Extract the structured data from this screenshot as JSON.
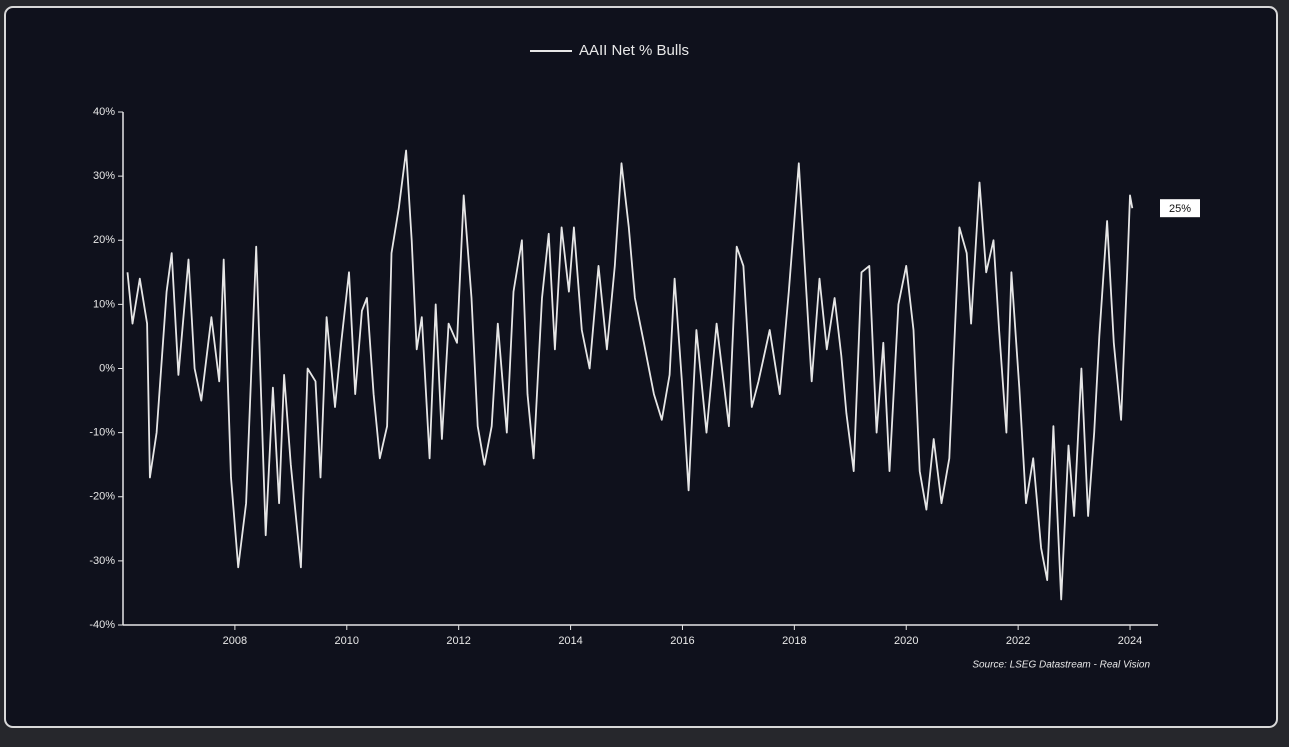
{
  "chart_data": {
    "type": "line",
    "xlim": [
      2006,
      2024.5
    ],
    "ylim": [
      -40,
      40
    ],
    "xticks": [
      2008,
      2010,
      2012,
      2014,
      2016,
      2018,
      2020,
      2022,
      2024
    ],
    "yticks": [
      {
        "value": -40,
        "label": "-40%"
      },
      {
        "value": -30,
        "label": "-30%"
      },
      {
        "value": -20,
        "label": "-20%"
      },
      {
        "value": -10,
        "label": "-10%"
      },
      {
        "value": 0,
        "label": "0%"
      },
      {
        "value": 10,
        "label": "10%"
      },
      {
        "value": 20,
        "label": "20%"
      },
      {
        "value": 30,
        "label": "30%"
      },
      {
        "value": 40,
        "label": "40%"
      }
    ],
    "source": "Source: LSEG Datastream - Real Vision",
    "annotation": {
      "value": 25,
      "label": "25%"
    },
    "x": [
      2006.08,
      2006.17,
      2006.3,
      2006.43,
      2006.48,
      2006.6,
      2006.78,
      2006.87,
      2006.99,
      2007.17,
      2007.28,
      2007.4,
      2007.58,
      2007.72,
      2007.8,
      2007.93,
      2008.06,
      2008.2,
      2008.38,
      2008.55,
      2008.68,
      2008.79,
      2008.88,
      2009.0,
      2009.18,
      2009.3,
      2009.44,
      2009.53,
      2009.64,
      2009.79,
      2009.9,
      2010.04,
      2010.15,
      2010.27,
      2010.36,
      2010.48,
      2010.59,
      2010.72,
      2010.8,
      2010.93,
      2011.06,
      2011.16,
      2011.25,
      2011.34,
      2011.48,
      2011.59,
      2011.7,
      2011.82,
      2011.97,
      2012.09,
      2012.23,
      2012.34,
      2012.46,
      2012.59,
      2012.7,
      2012.86,
      2012.98,
      2013.13,
      2013.23,
      2013.34,
      2013.49,
      2013.61,
      2013.72,
      2013.84,
      2013.97,
      2014.06,
      2014.2,
      2014.34,
      2014.5,
      2014.65,
      2014.79,
      2014.91,
      2015.04,
      2015.15,
      2015.31,
      2015.49,
      2015.63,
      2015.77,
      2015.86,
      2015.99,
      2016.11,
      2016.25,
      2016.43,
      2016.61,
      2016.83,
      2016.97,
      2017.09,
      2017.24,
      2017.36,
      2017.56,
      2017.74,
      2017.9,
      2018.08,
      2018.18,
      2018.31,
      2018.45,
      2018.58,
      2018.72,
      2018.84,
      2018.93,
      2019.06,
      2019.2,
      2019.34,
      2019.47,
      2019.59,
      2019.7,
      2019.86,
      2020.0,
      2020.13,
      2020.24,
      2020.36,
      2020.49,
      2020.63,
      2020.77,
      2020.95,
      2021.08,
      2021.16,
      2021.31,
      2021.43,
      2021.56,
      2021.66,
      2021.79,
      2021.88,
      2022.02,
      2022.14,
      2022.27,
      2022.41,
      2022.52,
      2022.63,
      2022.77,
      2022.9,
      2023.0,
      2023.13,
      2023.25,
      2023.36,
      2023.45,
      2023.59,
      2023.71,
      2023.84,
      2023.95,
      2024.0,
      2024.04
    ],
    "series": [
      {
        "name": "AAII Net % Bulls",
        "color": "#e6e6e6",
        "values": [
          15,
          7,
          14,
          7,
          -17,
          -10,
          12,
          18,
          -1,
          17,
          0,
          -5,
          8,
          -2,
          17,
          -17,
          -31,
          -21,
          19,
          -26,
          -3,
          -21,
          -1,
          -15,
          -31,
          0,
          -2,
          -17,
          8,
          -6,
          4,
          15,
          -4,
          9,
          11,
          -4,
          -14,
          -9,
          18,
          25,
          34,
          20,
          3,
          8,
          -14,
          10,
          -11,
          7,
          4,
          27,
          11,
          -9,
          -15,
          -9,
          7,
          -10,
          12,
          20,
          -4,
          -14,
          11,
          21,
          3,
          22,
          12,
          22,
          6,
          0,
          16,
          3,
          16,
          32,
          22,
          11,
          4,
          -4,
          -8,
          -1,
          14,
          -2,
          -19,
          6,
          -10,
          7,
          -9,
          19,
          16,
          -6,
          -2,
          6,
          -4,
          12,
          32,
          17,
          -2,
          14,
          3,
          11,
          2,
          -7,
          -16,
          15,
          16,
          -10,
          4,
          -16,
          10,
          16,
          6,
          -16,
          -22,
          -11,
          -21,
          -14,
          22,
          18,
          7,
          29,
          15,
          20,
          6,
          -10,
          15,
          -3,
          -21,
          -14,
          -28,
          -33,
          -9,
          -36,
          -12,
          -23,
          0,
          -23,
          -10,
          5,
          23,
          4,
          -8,
          15,
          27,
          25
        ]
      }
    ]
  }
}
